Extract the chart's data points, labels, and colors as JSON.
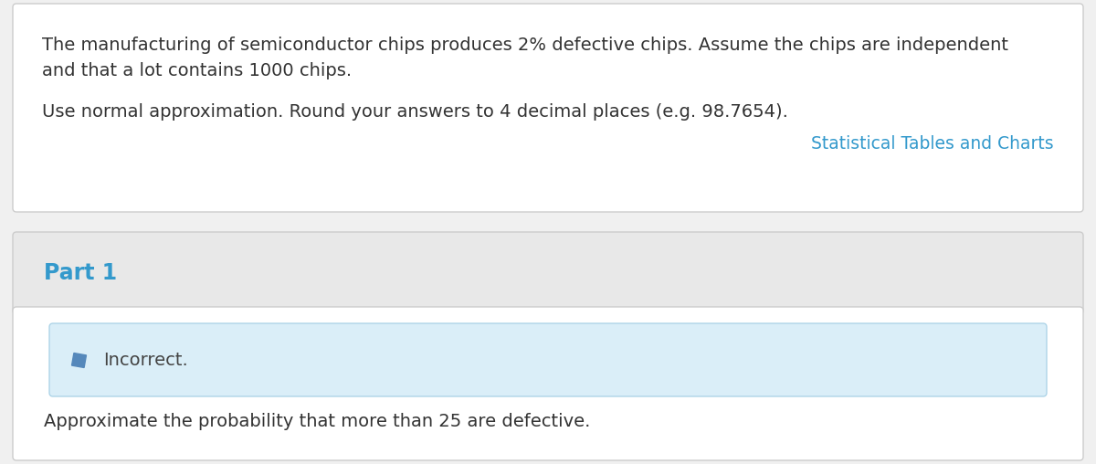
{
  "main_text_line1": "The manufacturing of semiconductor chips produces 2% defective chips. Assume the chips are independent",
  "main_text_line2": "and that a lot contains 1000 chips.",
  "instruction_text": "Use normal approximation. Round your answers to 4 decimal places (e.g. 98.7654).",
  "link_text": "Statistical Tables and Charts",
  "part_label": "Part 1",
  "feedback_text": "Incorrect.",
  "question_text": "Approximate the probability that more than 25 are defective.",
  "bg_color": "#f0f0f0",
  "card_bg_color": "#ffffff",
  "part_bg_color": "#e8e8e8",
  "feedback_bg_color": "#daeef8",
  "feedback_border_color": "#aed4e8",
  "link_color": "#3399cc",
  "part_color": "#3399cc",
  "text_color": "#333333",
  "feedback_text_color": "#444444",
  "pencil_color": "#5588bb",
  "card_border_color": "#cccccc",
  "main_font_size": 14.0,
  "instruction_font_size": 14.0,
  "link_font_size": 13.5,
  "part_font_size": 17,
  "feedback_font_size": 14.0,
  "question_font_size": 14.0
}
